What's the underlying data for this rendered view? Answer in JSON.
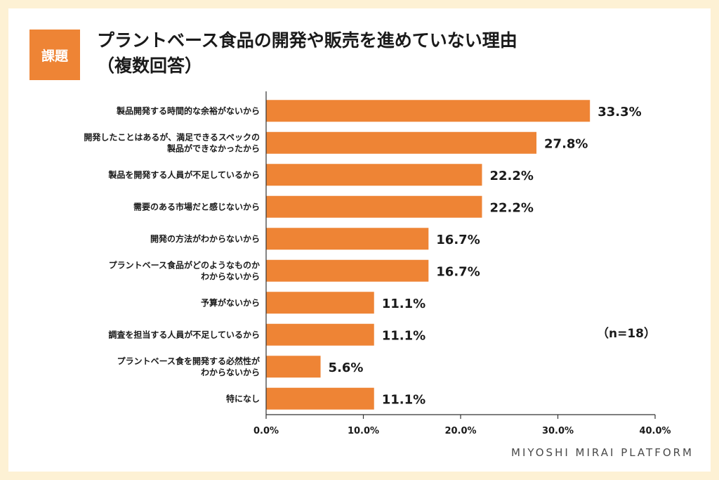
{
  "badge": "課題",
  "title_line1": "プラントベース食品の開発や販売を進めていない理由",
  "title_line2": "（複数回答）",
  "note": "（n=18）",
  "brand": "MIYOSHI MIRAI PLATFORM",
  "colors": {
    "bar": "#ee8435",
    "badge": "#ee8435",
    "background": "#fdf1d4"
  },
  "chart_data": {
    "type": "bar",
    "orientation": "horizontal",
    "title": "プラントベース食品の開発や販売を進めていない理由（複数回答）",
    "categories": [
      [
        "製品開発する時間的な余裕がないから"
      ],
      [
        "開発したことはあるが、満足できるスペックの",
        "製品ができなかったから"
      ],
      [
        "製品を開発する人員が不足しているから"
      ],
      [
        "需要のある市場だと感じないから"
      ],
      [
        "開発の方法がわからないから"
      ],
      [
        "プラントベース食品がどのようなものか",
        "わからないから"
      ],
      [
        "予算がないから"
      ],
      [
        "調査を担当する人員が不足しているから"
      ],
      [
        "プラントベース食を開発する必然性が",
        "わからないから"
      ],
      [
        "特になし"
      ]
    ],
    "values": [
      33.3,
      27.8,
      22.2,
      22.2,
      16.7,
      16.7,
      11.1,
      11.1,
      5.6,
      11.1
    ],
    "value_labels": [
      "33.3%",
      "27.8%",
      "22.2%",
      "22.2%",
      "16.7%",
      "16.7%",
      "11.1%",
      "11.1%",
      "5.6%",
      "11.1%"
    ],
    "xlim": [
      0,
      40
    ],
    "xticks": [
      0,
      10,
      20,
      30,
      40
    ],
    "xtick_labels": [
      "0.0%",
      "10.0%",
      "20.0%",
      "30.0%",
      "40.0%"
    ],
    "xlabel": "",
    "ylabel": "",
    "grid": false
  }
}
